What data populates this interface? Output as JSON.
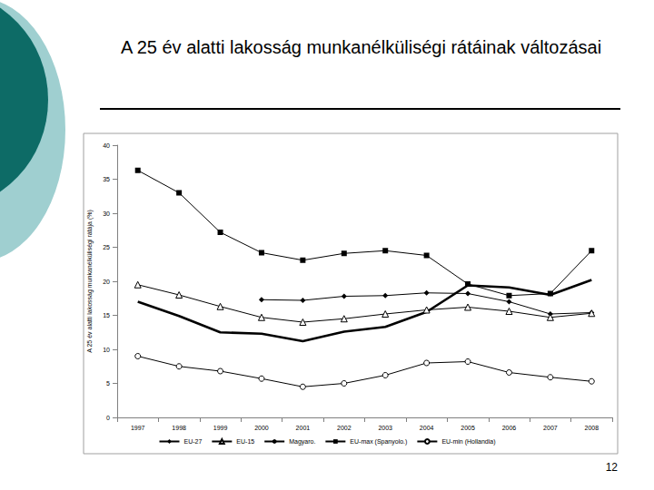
{
  "chart_data": {
    "type": "line",
    "title": "A 25 év alatti lakosság munkanélküliségi rátáinak változásai",
    "y_label": "A 25 év alatti lakosság munkanélküliségi rátája (%)",
    "categories": [
      "1997",
      "1998",
      "1999",
      "2000",
      "2001",
      "2002",
      "2003",
      "2004",
      "2005",
      "2006",
      "2007",
      "2008"
    ],
    "series": [
      {
        "name": "EU-27",
        "color": "#000000",
        "marker": "diamond",
        "line_style": "solid",
        "values": [
          null,
          null,
          null,
          17.3,
          17.2,
          17.8,
          17.9,
          18.3,
          18.2,
          17.0,
          15.2,
          15.4
        ]
      },
      {
        "name": "EU-15",
        "color": "#000000",
        "marker": "triangle-open",
        "line_style": "solid",
        "values": [
          19.5,
          18.0,
          16.3,
          14.7,
          14.0,
          14.5,
          15.2,
          15.8,
          16.2,
          15.6,
          14.7,
          15.3
        ]
      },
      {
        "name": "Magyaro.",
        "color": "#000000",
        "marker": "none",
        "line_style": "bold",
        "values": [
          17.0,
          14.9,
          12.5,
          12.3,
          11.2,
          12.6,
          13.3,
          15.5,
          19.4,
          19.1,
          18.0,
          20.2
        ]
      },
      {
        "name": "EU-max (Spanyolo.)",
        "color": "#000000",
        "marker": "square",
        "line_style": "solid",
        "values": [
          36.3,
          33.0,
          27.2,
          24.2,
          23.1,
          24.1,
          24.5,
          23.8,
          19.6,
          17.9,
          18.2,
          24.5
        ]
      },
      {
        "name": "EU-min (Hollandia)",
        "color": "#000000",
        "marker": "circle-open",
        "line_style": "solid",
        "values": [
          9.0,
          7.5,
          6.8,
          5.7,
          4.5,
          5.0,
          6.2,
          8.0,
          8.2,
          6.6,
          5.9,
          5.3
        ]
      }
    ],
    "ylim": [
      0,
      40
    ],
    "yticks": [
      0,
      5,
      10,
      15,
      20,
      25,
      30,
      35,
      40
    ],
    "grid": false,
    "legend": "bottom",
    "data_labels": false
  },
  "slide": {
    "page_number": "12"
  }
}
